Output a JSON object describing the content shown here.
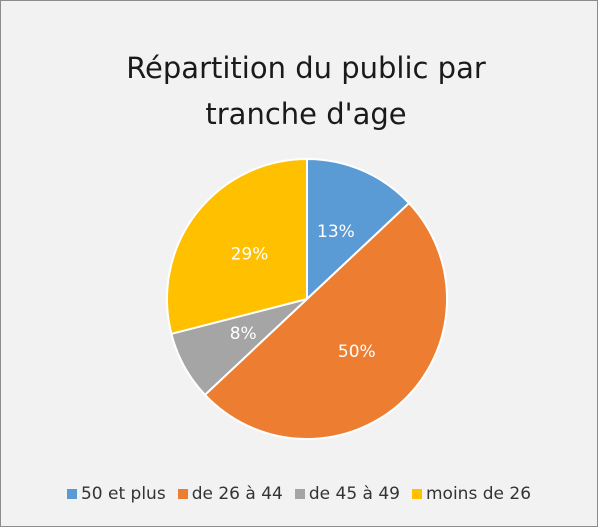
{
  "chart_data": {
    "type": "pie",
    "title": "Répartition du public par tranche d'age",
    "categories": [
      "50 et plus",
      "de 26 à 44",
      "de 45 à 49",
      "moins de 26"
    ],
    "values": [
      13,
      50,
      8,
      29
    ],
    "value_labels": [
      "13%",
      "50%",
      "8%",
      "29%"
    ],
    "colors": [
      "#5b9bd5",
      "#ed7d31",
      "#a5a5a5",
      "#ffc000"
    ],
    "legend": "bottom"
  }
}
